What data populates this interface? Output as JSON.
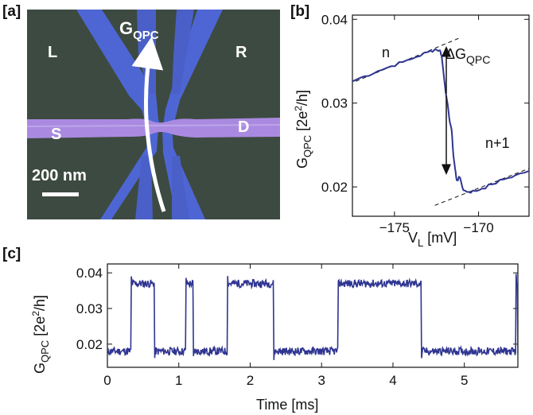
{
  "panels": {
    "a": {
      "label": "[a]"
    },
    "b": {
      "label": "[b]"
    },
    "c": {
      "label": "[c]"
    }
  },
  "micrograph": {
    "title_main": "G",
    "title_sub": "QPC",
    "left_gate": "L",
    "right_gate": "R",
    "source": "S",
    "drain": "D",
    "scale_bar": "200 nm",
    "colors": {
      "background": "#3c4a40",
      "gates": "#4d66d6",
      "nanowire": "#a889e0"
    }
  },
  "chart_data": [
    {
      "panel": "b",
      "type": "line",
      "xlabel_main": "V",
      "xlabel_sub": "L",
      "xlabel_unit": " [mV]",
      "ylabel_main": "G",
      "ylabel_sub": "QPC",
      "ylabel_unit": " [2e",
      "ylabel_sup": "2",
      "ylabel_end": "/h]",
      "xlim": [
        -177.5,
        -167
      ],
      "ylim": [
        0.0165,
        0.0405
      ],
      "xticks": [
        -175,
        -170
      ],
      "xtick_labels": [
        "−175",
        "−170"
      ],
      "yticks": [
        0.02,
        0.03,
        0.04
      ],
      "ytick_labels": [
        "0.02",
        "0.03",
        "0.04"
      ],
      "annotations": {
        "n": "n",
        "n_plus_1": "n+1",
        "delta_symbol": "Δ",
        "delta_main": "G",
        "delta_sub": "QPC"
      },
      "series": [
        {
          "color": "#2f3591",
          "x": [
            -177.5,
            -176.8,
            -176,
            -175.2,
            -174.5,
            -173.7,
            -173,
            -172.6,
            -172.3,
            -172.2,
            -172.05,
            -171.9,
            -171.75,
            -171.6,
            -171.5,
            -171.4,
            -171.3,
            -171.1,
            -170.9,
            -170.6,
            -170.2,
            -169.8,
            -169.2,
            -168.5,
            -167.8,
            -167
          ],
          "y": [
            0.0326,
            0.0332,
            0.0338,
            0.0344,
            0.0349,
            0.0355,
            0.0361,
            0.0364,
            0.0363,
            0.0357,
            0.033,
            0.0306,
            0.0283,
            0.0268,
            0.0238,
            0.0222,
            0.0208,
            0.0211,
            0.0196,
            0.0194,
            0.0195,
            0.0198,
            0.0203,
            0.0209,
            0.0214,
            0.0219
          ]
        }
      ],
      "guide_lines": [
        {
          "x": [
            -177.3,
            -171.1
          ],
          "y": [
            0.0326,
            0.0378
          ]
        },
        {
          "x": [
            -172.6,
            -167
          ],
          "y": [
            0.0178,
            0.0222
          ]
        }
      ]
    },
    {
      "panel": "c",
      "type": "line",
      "xlabel": "Time [ms]",
      "ylabel_main": "G",
      "ylabel_sub": "QPC",
      "ylabel_unit": " [2e",
      "ylabel_sup": "2",
      "ylabel_end": "/h]",
      "xlim": [
        0,
        5.75
      ],
      "ylim": [
        0.0135,
        0.0425
      ],
      "xticks": [
        0,
        1,
        2,
        3,
        4,
        5
      ],
      "xtick_labels": [
        "0",
        "1",
        "2",
        "3",
        "4",
        "5"
      ],
      "yticks": [
        0.02,
        0.03,
        0.04
      ],
      "ytick_labels": [
        "0.02",
        "0.03",
        "0.04"
      ],
      "levels": {
        "low": 0.018,
        "high": 0.037
      },
      "high_intervals": [
        [
          0.33,
          0.66
        ],
        [
          1.1,
          1.2
        ],
        [
          1.68,
          2.33
        ],
        [
          3.23,
          4.4
        ],
        [
          5.72,
          5.75
        ]
      ],
      "series": [
        {
          "color": "#2f3591"
        }
      ]
    }
  ]
}
